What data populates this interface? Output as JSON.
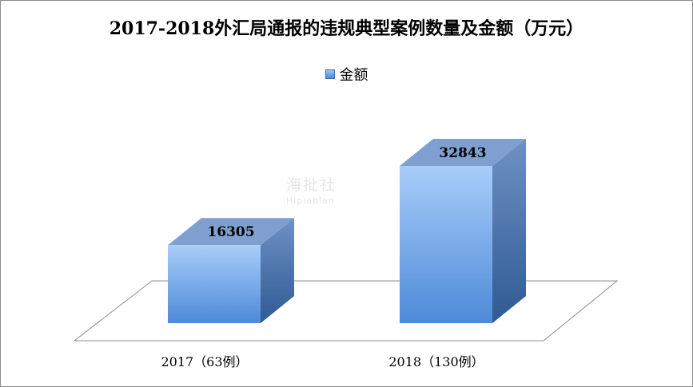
{
  "chart_data": {
    "type": "bar",
    "title": "2017-2018外汇局通报的违规典型案例数量及金额（万元）",
    "categories": [
      "2017（63例）",
      "2018（130例）"
    ],
    "series": [
      {
        "name": "金额",
        "values": [
          16305,
          32843
        ]
      }
    ],
    "data_labels": [
      "16305",
      "32843"
    ],
    "ylim": [
      0,
      35000
    ],
    "grid": false,
    "legend_position": "top-center",
    "three_d": true,
    "colors": {
      "bar_front_top": "#a9cdfa",
      "bar_front_bottom": "#4d8ad8",
      "bar_side": "#3f6ea8",
      "bar_top": "#7f9fd0",
      "floor_stroke": "#8c8c8c"
    }
  },
  "watermark": {
    "line1": "海批社",
    "line2": "Hipiablan"
  }
}
